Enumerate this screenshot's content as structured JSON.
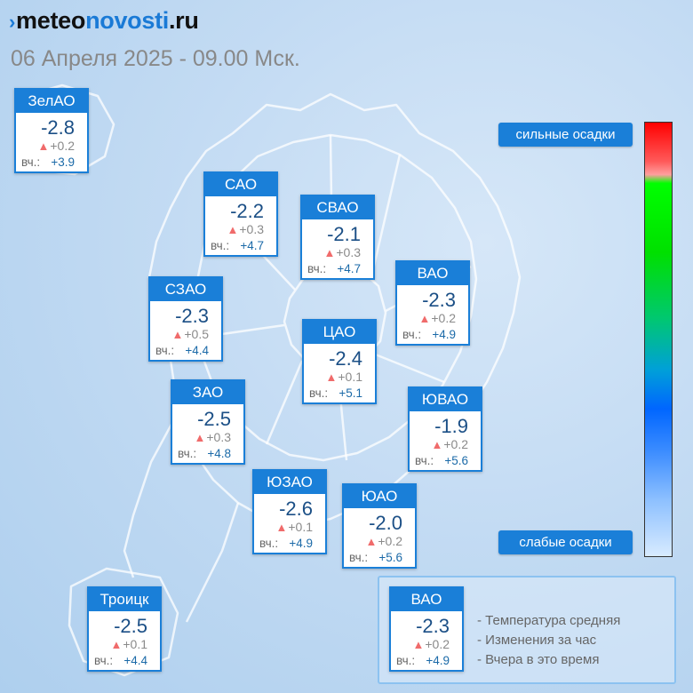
{
  "brand": {
    "mark": "›",
    "part1": "meteo",
    "part2": "novosti",
    "part3": ".ru"
  },
  "subtitle": "06 Апреля 2025 - 09.00 Мск.",
  "districts": [
    {
      "name": "ЗелАО",
      "temp": "-2.8",
      "change": "+0.2",
      "yday_label": "вч.:",
      "yday": "+3.9"
    },
    {
      "name": "САО",
      "temp": "-2.2",
      "change": "+0.3",
      "yday_label": "вч.:",
      "yday": "+4.7"
    },
    {
      "name": "СВАО",
      "temp": "-2.1",
      "change": "+0.3",
      "yday_label": "вч.:",
      "yday": "+4.7"
    },
    {
      "name": "ВАО",
      "temp": "-2.3",
      "change": "+0.2",
      "yday_label": "вч.:",
      "yday": "+4.9"
    },
    {
      "name": "СЗАО",
      "temp": "-2.3",
      "change": "+0.5",
      "yday_label": "вч.:",
      "yday": "+4.4"
    },
    {
      "name": "ЦАО",
      "temp": "-2.4",
      "change": "+0.1",
      "yday_label": "вч.:",
      "yday": "+5.1"
    },
    {
      "name": "ЗАО",
      "temp": "-2.5",
      "change": "+0.3",
      "yday_label": "вч.:",
      "yday": "+4.8"
    },
    {
      "name": "ЮВАО",
      "temp": "-1.9",
      "change": "+0.2",
      "yday_label": "вч.:",
      "yday": "+5.6"
    },
    {
      "name": "ЮЗАО",
      "temp": "-2.6",
      "change": "+0.1",
      "yday_label": "вч.:",
      "yday": "+4.9"
    },
    {
      "name": "ЮАО",
      "temp": "-2.0",
      "change": "+0.2",
      "yday_label": "вч.:",
      "yday": "+5.6"
    },
    {
      "name": "Троицк",
      "temp": "-2.5",
      "change": "+0.1",
      "yday_label": "вч.:",
      "yday": "+4.4"
    }
  ],
  "scale": {
    "top_label": "сильные осадки",
    "bottom_label": "слабые осадки"
  },
  "legend": {
    "sample": {
      "name": "ВАО",
      "temp": "-2.3",
      "change": "+0.2",
      "yday_label": "вч.:",
      "yday": "+4.9"
    },
    "lines": [
      "- Температура средняя",
      "- Изменения за час",
      "- Вчера в это время"
    ]
  },
  "colors": {
    "accent": "#1a7fd8",
    "temp_text": "#1b4f86",
    "rise_arrow": "#f06b6b"
  }
}
